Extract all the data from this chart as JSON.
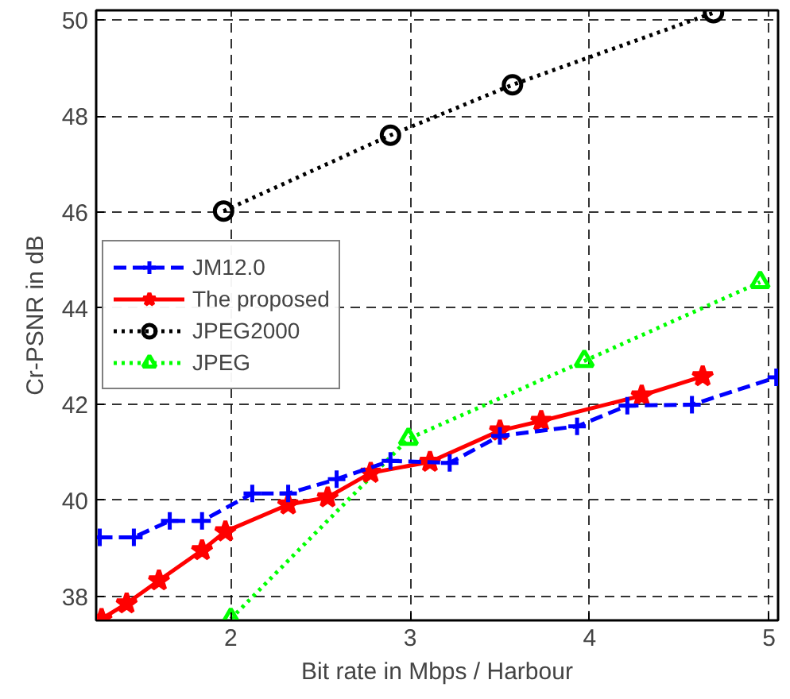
{
  "chart_data": {
    "type": "line",
    "xlabel": "Bit rate in Mbps / Harbour",
    "ylabel": "Cr-PSNR in dB",
    "xlim": [
      1.25,
      5.05
    ],
    "ylim": [
      37.5,
      50.2
    ],
    "xticks": [
      2,
      3,
      4,
      5
    ],
    "yticks": [
      38,
      40,
      42,
      44,
      46,
      48,
      50
    ],
    "grid": true,
    "legend": "left",
    "series": [
      {
        "name": "JM12.0",
        "color": "#0000ff",
        "marker": "cross",
        "line_style": "dashed",
        "x": [
          1.27,
          1.46,
          1.66,
          1.84,
          2.12,
          2.32,
          2.59,
          2.89,
          3.22,
          3.5,
          3.93,
          4.21,
          4.57,
          5.04
        ],
        "values": [
          39.23,
          39.23,
          39.57,
          39.57,
          40.14,
          40.14,
          40.44,
          40.82,
          40.78,
          41.34,
          41.54,
          41.97,
          41.99,
          42.56
        ]
      },
      {
        "name": "The proposed",
        "color": "#ff0000",
        "marker": "star",
        "line_style": "solid",
        "x": [
          1.28,
          1.42,
          1.6,
          1.84,
          1.97,
          2.32,
          2.54,
          2.78,
          3.11,
          3.5,
          3.73,
          4.29,
          4.63
        ],
        "values": [
          37.53,
          37.85,
          38.33,
          38.96,
          39.35,
          39.91,
          40.06,
          40.57,
          40.8,
          41.45,
          41.65,
          42.18,
          42.58
        ]
      },
      {
        "name": "JPEG2000",
        "color": "#000000",
        "marker": "circle",
        "line_style": "dotted",
        "x": [
          1.96,
          2.89,
          3.57,
          4.69
        ],
        "values": [
          46.02,
          47.6,
          48.65,
          50.15
        ]
      },
      {
        "name": "JPEG",
        "color": "#00ff00",
        "marker": "triangle",
        "line_style": "dotted",
        "x": [
          2.0,
          2.99,
          3.97,
          4.95
        ],
        "values": [
          37.53,
          41.28,
          42.9,
          44.54
        ]
      }
    ]
  }
}
